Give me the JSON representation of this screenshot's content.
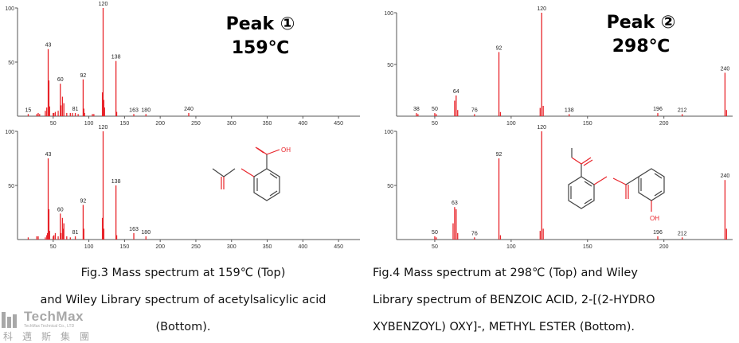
{
  "peak1": {
    "label": "Peak ①",
    "temp": "159℃"
  },
  "peak2": {
    "label": "Peak ②",
    "temp": "298℃"
  },
  "caption_left": [
    "Fig.3 Mass spectrum at 159℃ (Top)",
    "and Wiley Library spectrum of acetylsalicylic acid",
    "(Bottom)."
  ],
  "caption_right": [
    "Fig.4 Mass spectrum at 298℃ (Top) and Wiley",
    "Library spectrum of BENZOIC ACID, 2-[(2-HYDRO",
    "XYBENZOYL) OXY]-, METHYL ESTER (Bottom)."
  ],
  "logo": {
    "name": "TechMax",
    "sub": "TechMax Technical Co., LTD",
    "cn": "科邁斯集團"
  },
  "colors": {
    "peak": "#e8242a",
    "axis": "#555555",
    "text": "#000000"
  },
  "molecule_labels": {
    "left": {
      "oh": "OH"
    },
    "right": {
      "oh": "OH"
    }
  },
  "chart_data": [
    {
      "type": "bar",
      "title": "",
      "xlabel": "",
      "ylabel": "",
      "xlim": [
        0,
        480
      ],
      "ylim": [
        0,
        100
      ],
      "xticks": [
        50,
        100,
        150,
        200,
        250,
        300,
        350,
        400,
        450
      ],
      "yticks": [
        50,
        100
      ],
      "x": [
        15,
        27,
        29,
        31,
        39,
        41,
        43,
        44,
        45,
        50,
        51,
        53,
        57,
        60,
        61,
        63,
        65,
        69,
        74,
        77,
        81,
        85,
        92,
        93,
        94,
        105,
        107,
        119,
        120,
        121,
        122,
        138,
        139,
        163,
        180,
        240
      ],
      "y": [
        2,
        2,
        3,
        2,
        5,
        8,
        62,
        33,
        9,
        3,
        3,
        4,
        5,
        30,
        10,
        18,
        12,
        3,
        3,
        3,
        3,
        2,
        34,
        7,
        3,
        2,
        2,
        22,
        100,
        15,
        8,
        51,
        4,
        2,
        2,
        3
      ],
      "labels": {
        "15": "15",
        "43": "43",
        "60": "60",
        "81": "81",
        "92": "92",
        "120": "120",
        "138": "138",
        "163": "163",
        "180": "180",
        "240": "240"
      }
    },
    {
      "type": "bar",
      "title": "",
      "xlabel": "",
      "ylabel": "",
      "xlim": [
        0,
        480
      ],
      "ylim": [
        0,
        100
      ],
      "xticks": [
        50,
        100,
        150,
        200,
        250,
        300,
        350,
        400,
        450
      ],
      "yticks": [
        50,
        100
      ],
      "x": [
        15,
        27,
        29,
        39,
        41,
        42,
        43,
        44,
        45,
        50,
        51,
        53,
        57,
        60,
        61,
        63,
        64,
        65,
        69,
        74,
        81,
        92,
        93,
        119,
        120,
        121,
        138,
        139,
        163,
        180
      ],
      "y": [
        2,
        3,
        3,
        2,
        4,
        6,
        75,
        28,
        8,
        3,
        4,
        6,
        3,
        24,
        6,
        20,
        10,
        15,
        3,
        2,
        3,
        32,
        10,
        20,
        100,
        10,
        50,
        4,
        6,
        3
      ],
      "labels": {
        "43": "43",
        "60": "60",
        "81": "81",
        "92": "92",
        "120": "120",
        "138": "138",
        "163": "163",
        "180": "180"
      }
    },
    {
      "type": "bar",
      "title": "",
      "xlabel": "",
      "ylabel": "",
      "xlim": [
        25,
        245
      ],
      "ylim": [
        0,
        100
      ],
      "xticks": [
        50,
        100,
        150,
        200
      ],
      "yticks": [
        50,
        100
      ],
      "x": [
        38,
        39,
        50,
        51,
        63,
        64,
        65,
        76,
        92,
        93,
        119,
        120,
        121,
        138,
        196,
        212,
        240,
        241
      ],
      "y": [
        3,
        2,
        3,
        2,
        15,
        20,
        6,
        2,
        62,
        4,
        8,
        100,
        10,
        2,
        3,
        2,
        42,
        6
      ],
      "labels": {
        "38": "38",
        "50": "50",
        "64": "64",
        "76": "76",
        "92": "92",
        "120": "120",
        "138": "138",
        "196": "196",
        "212": "212",
        "240": "240"
      }
    },
    {
      "type": "bar",
      "title": "",
      "xlabel": "",
      "ylabel": "",
      "xlim": [
        25,
        245
      ],
      "ylim": [
        0,
        100
      ],
      "xticks": [
        50,
        100,
        150,
        200
      ],
      "yticks": [
        50,
        100
      ],
      "x": [
        50,
        51,
        62,
        63,
        64,
        65,
        76,
        92,
        93,
        119,
        120,
        121,
        196,
        212,
        240,
        241
      ],
      "y": [
        3,
        2,
        15,
        30,
        28,
        6,
        2,
        75,
        4,
        8,
        100,
        10,
        3,
        2,
        55,
        10
      ],
      "labels": {
        "50": "50",
        "63": "63",
        "76": "76",
        "92": "92",
        "120": "120",
        "196": "196",
        "212": "212",
        "240": "240"
      }
    }
  ]
}
